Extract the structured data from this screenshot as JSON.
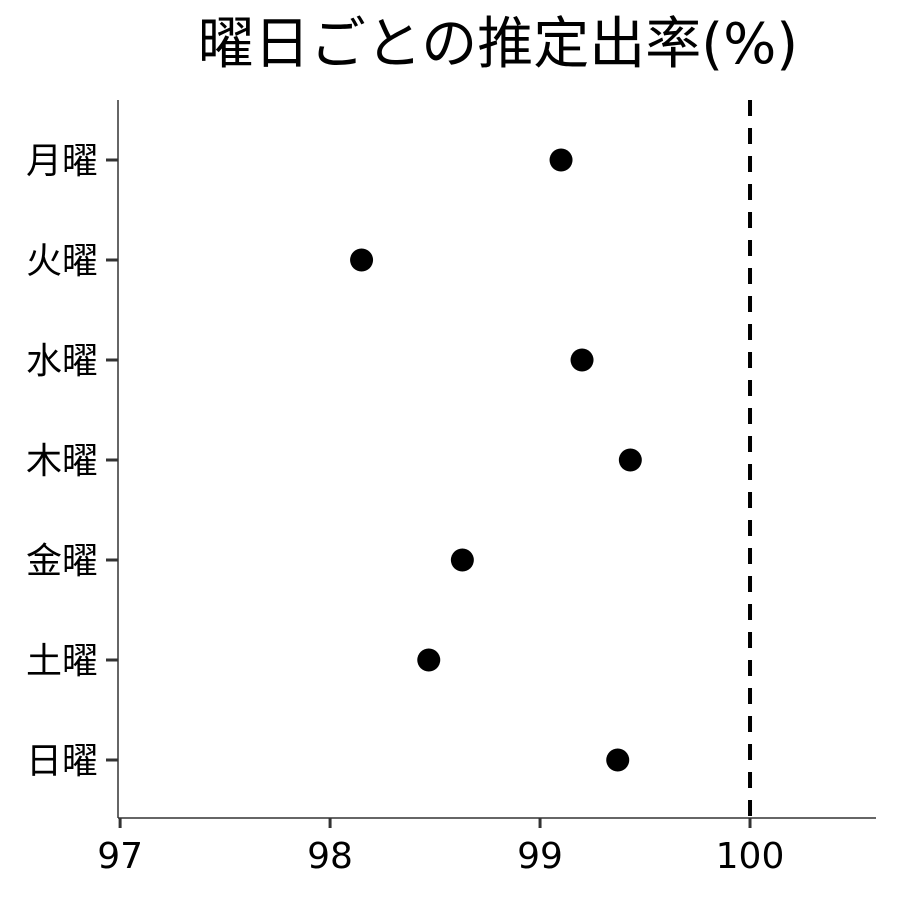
{
  "chart_data": {
    "type": "scatter",
    "title": "曜日ごとの推定出率(%)",
    "xlabel": "",
    "ylabel": "",
    "categories": [
      "月曜",
      "火曜",
      "水曜",
      "木曜",
      "金曜",
      "土曜",
      "日曜"
    ],
    "values": [
      99.1,
      98.15,
      99.2,
      99.43,
      98.63,
      98.47,
      99.37
    ],
    "xlim": [
      96.99,
      100.6
    ],
    "xticks": [
      "97",
      "98",
      "99",
      "100"
    ],
    "reference_line": {
      "x": 100,
      "style": "dashed"
    },
    "grid": false,
    "marker_color": "#000000"
  }
}
